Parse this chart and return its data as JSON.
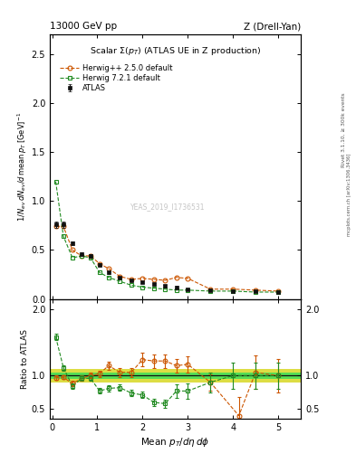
{
  "title_top_left": "13000 GeV pp",
  "title_top_right": "Z (Drell-Yan)",
  "plot_title": "Scalar Σ(p_T) (ATLAS UE in Z production)",
  "watermark": "YEAS_2019_I1736531",
  "right_label1": "Rivet 3.1.10, ≥ 300k events",
  "right_label2": "mcplots.cern.ch [arXiv:1306.3436]",
  "atlas_x": [
    0.08,
    0.25,
    0.45,
    0.65,
    0.85,
    1.05,
    1.25,
    1.5,
    1.75,
    2.0,
    2.25,
    2.5,
    2.75,
    3.0,
    3.5,
    4.0,
    4.5,
    5.0
  ],
  "atlas_y": [
    0.76,
    0.76,
    0.57,
    0.46,
    0.44,
    0.35,
    0.27,
    0.22,
    0.19,
    0.17,
    0.15,
    0.13,
    0.12,
    0.1,
    0.09,
    0.08,
    0.08,
    0.07
  ],
  "atlas_yerr": [
    0.03,
    0.03,
    0.02,
    0.02,
    0.02,
    0.015,
    0.015,
    0.01,
    0.01,
    0.01,
    0.01,
    0.01,
    0.01,
    0.01,
    0.01,
    0.01,
    0.01,
    0.01
  ],
  "herwig1_x": [
    0.08,
    0.25,
    0.45,
    0.65,
    0.85,
    1.05,
    1.25,
    1.5,
    1.75,
    2.0,
    2.25,
    2.5,
    2.75,
    3.0,
    3.5,
    4.0,
    4.5,
    5.0
  ],
  "herwig1_y": [
    0.74,
    0.74,
    0.5,
    0.44,
    0.44,
    0.36,
    0.31,
    0.23,
    0.2,
    0.21,
    0.2,
    0.19,
    0.22,
    0.21,
    0.1,
    0.1,
    0.09,
    0.08
  ],
  "herwig2_x": [
    0.08,
    0.25,
    0.45,
    0.65,
    0.85,
    1.05,
    1.25,
    1.5,
    1.75,
    2.0,
    2.25,
    2.5,
    2.75,
    3.0,
    3.5,
    4.0,
    4.5,
    5.0
  ],
  "herwig2_y": [
    1.2,
    0.64,
    0.42,
    0.44,
    0.42,
    0.27,
    0.22,
    0.18,
    0.14,
    0.12,
    0.11,
    0.1,
    0.09,
    0.09,
    0.08,
    0.08,
    0.07,
    0.07
  ],
  "ratio1_x": [
    0.08,
    0.25,
    0.45,
    0.65,
    0.85,
    1.05,
    1.25,
    1.5,
    1.75,
    2.0,
    2.25,
    2.5,
    2.75,
    3.0,
    3.5,
    4.13,
    4.5,
    5.0
  ],
  "ratio1_y": [
    0.97,
    0.975,
    0.88,
    0.96,
    1.0,
    1.03,
    1.15,
    1.05,
    1.05,
    1.24,
    1.22,
    1.22,
    1.15,
    1.17,
    0.9,
    0.4,
    1.05,
    1.0
  ],
  "ratio1_yerr": [
    0.03,
    0.03,
    0.04,
    0.04,
    0.04,
    0.05,
    0.06,
    0.07,
    0.07,
    0.1,
    0.1,
    0.1,
    0.1,
    0.12,
    0.12,
    0.28,
    0.25,
    0.25
  ],
  "ratio2_x": [
    0.08,
    0.25,
    0.45,
    0.65,
    0.85,
    1.05,
    1.25,
    1.5,
    1.75,
    2.0,
    2.25,
    2.5,
    2.75,
    3.0,
    3.5,
    4.0,
    4.5,
    5.0
  ],
  "ratio2_y": [
    1.58,
    1.12,
    0.84,
    0.96,
    0.96,
    0.77,
    0.81,
    0.82,
    0.74,
    0.71,
    0.6,
    0.58,
    0.77,
    0.77,
    0.9,
    1.0,
    1.0,
    1.0
  ],
  "ratio2_yerr": [
    0.05,
    0.04,
    0.04,
    0.04,
    0.04,
    0.04,
    0.05,
    0.05,
    0.05,
    0.05,
    0.05,
    0.06,
    0.1,
    0.12,
    0.15,
    0.2,
    0.2,
    0.2
  ],
  "band_inner_lo": 0.955,
  "band_inner_hi": 1.045,
  "band_outer_lo": 0.9,
  "band_outer_hi": 1.1,
  "color_atlas": "#111111",
  "color_herwig1": "#cc5500",
  "color_herwig2": "#228B22",
  "color_band_inner": "#55dd55",
  "color_band_outer": "#dddd44",
  "ylim_main": [
    0.0,
    2.7
  ],
  "ylim_ratio": [
    0.35,
    2.15
  ],
  "yticks_main": [
    0.0,
    0.5,
    1.0,
    1.5,
    2.0,
    2.5
  ],
  "yticks_ratio": [
    0.5,
    1.0,
    2.0
  ],
  "xlim": [
    -0.05,
    5.5
  ]
}
